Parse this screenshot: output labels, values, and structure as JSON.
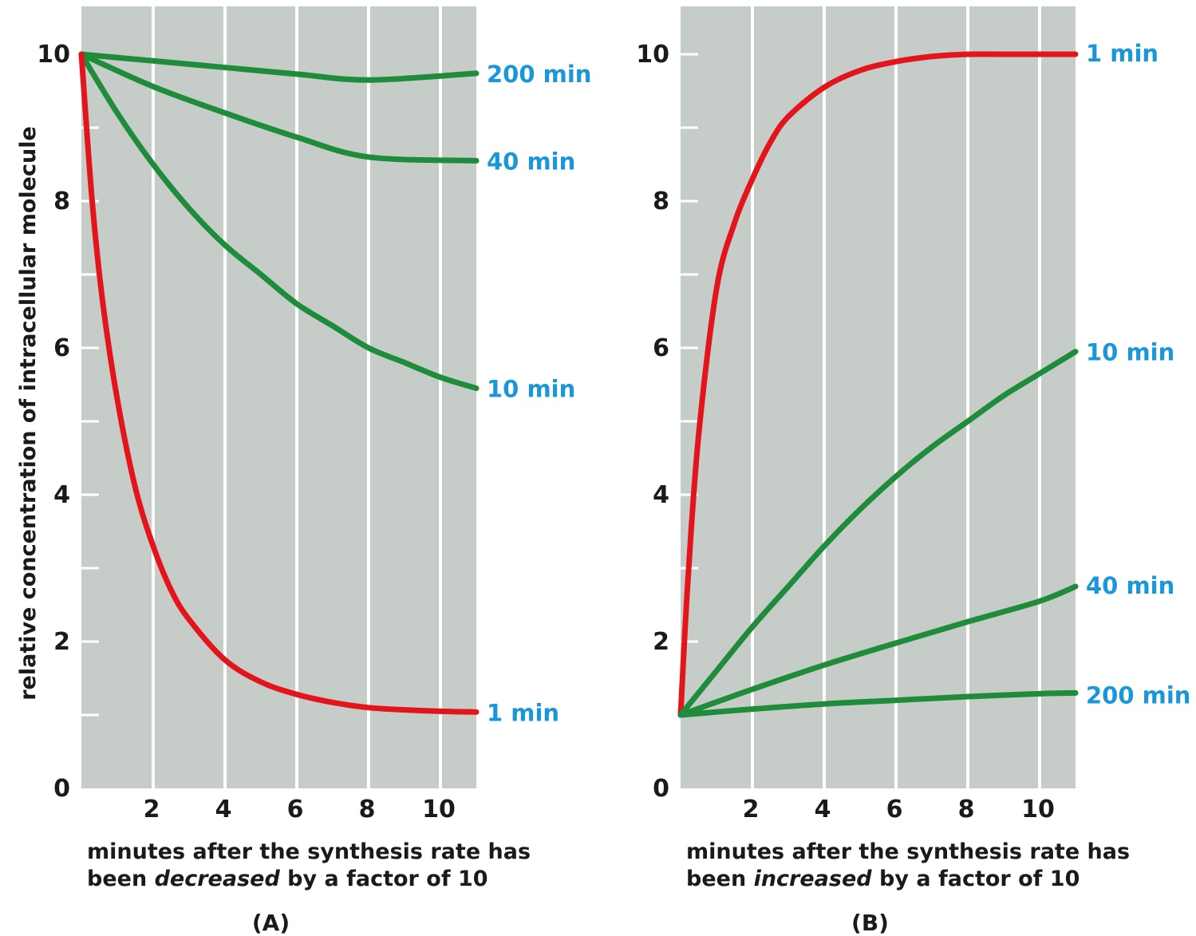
{
  "ylabel": "relative concentration of intracellular molecule",
  "colors": {
    "plot_bg": "#c6cdc8",
    "grid": "#ffffff",
    "fast": "#e3141b",
    "slow": "#1e8c3a",
    "series_label": "#1a97d8"
  },
  "chart_data": [
    {
      "type": "line",
      "panel_label": "(A)",
      "xlabel_line1": "minutes after the synthesis rate has",
      "xlabel_line2_pre": "been ",
      "xlabel_line2_em": "decreased",
      "xlabel_line2_post": " by a factor of 10",
      "ylabel": "relative concentration of intracellular molecule",
      "xlim": [
        0,
        11
      ],
      "ylim": [
        0,
        10
      ],
      "x_ticks": [
        2,
        4,
        6,
        8,
        10
      ],
      "x_tick_labels": [
        "2",
        "4",
        "6",
        "8",
        "10"
      ],
      "y_ticks": [
        0,
        2,
        4,
        6,
        8,
        10
      ],
      "y_tick_labels": [
        "0",
        "2",
        "4",
        "6",
        "8",
        "10"
      ],
      "grid": true,
      "series": [
        {
          "name": "200 min",
          "color_key": "slow",
          "x": [
            0,
            2,
            4,
            6,
            8,
            11
          ],
          "y": [
            10,
            9.91,
            9.82,
            9.73,
            9.65,
            9.74
          ]
        },
        {
          "name": "40 min",
          "color_key": "slow",
          "x": [
            0,
            2,
            4,
            6,
            8,
            11
          ],
          "y": [
            10,
            9.56,
            9.2,
            8.87,
            8.6,
            8.55
          ]
        },
        {
          "name": "10 min",
          "color_key": "slow",
          "x": [
            0,
            1,
            2,
            3,
            4,
            5,
            6,
            7,
            8,
            9,
            10,
            11
          ],
          "y": [
            10,
            9.2,
            8.5,
            7.9,
            7.4,
            7.0,
            6.6,
            6.3,
            6.0,
            5.8,
            5.6,
            5.45
          ]
        },
        {
          "name": "1 min",
          "color_key": "fast",
          "x": [
            0,
            0.3,
            0.6,
            1,
            1.5,
            2,
            2.5,
            3,
            4,
            5,
            6,
            7,
            8,
            9,
            10,
            11
          ],
          "y": [
            10,
            8.0,
            6.6,
            5.3,
            4.1,
            3.3,
            2.7,
            2.3,
            1.75,
            1.45,
            1.28,
            1.17,
            1.1,
            1.07,
            1.05,
            1.04
          ]
        }
      ]
    },
    {
      "type": "line",
      "panel_label": "(B)",
      "xlabel_line1": "minutes after the synthesis rate has",
      "xlabel_line2_pre": "been ",
      "xlabel_line2_em": "increased",
      "xlabel_line2_post": " by a factor of 10",
      "xlim": [
        0,
        11
      ],
      "ylim": [
        0,
        10
      ],
      "x_ticks": [
        2,
        4,
        6,
        8,
        10
      ],
      "x_tick_labels": [
        "2",
        "4",
        "6",
        "8",
        "10"
      ],
      "y_ticks": [
        0,
        2,
        4,
        6,
        8,
        10
      ],
      "y_tick_labels": [
        "0",
        "2",
        "4",
        "6",
        "8",
        "10"
      ],
      "grid": true,
      "series": [
        {
          "name": "1 min",
          "color_key": "fast",
          "x": [
            0,
            0.2,
            0.5,
            1,
            1.5,
            2,
            2.5,
            3,
            4,
            5,
            6,
            7,
            8,
            9,
            10,
            11
          ],
          "y": [
            1,
            2.8,
            4.8,
            6.8,
            7.7,
            8.3,
            8.8,
            9.15,
            9.55,
            9.78,
            9.9,
            9.97,
            10.0,
            10.0,
            10.0,
            10.0
          ]
        },
        {
          "name": "10 min",
          "color_key": "slow",
          "x": [
            0,
            1,
            2,
            3,
            4,
            5,
            6,
            7,
            8,
            9,
            10,
            11
          ],
          "y": [
            1,
            1.6,
            2.2,
            2.75,
            3.3,
            3.8,
            4.25,
            4.65,
            5.0,
            5.35,
            5.65,
            5.95
          ]
        },
        {
          "name": "40 min",
          "color_key": "slow",
          "x": [
            0,
            2,
            4,
            6,
            8,
            10,
            11
          ],
          "y": [
            1,
            1.35,
            1.68,
            1.98,
            2.27,
            2.55,
            2.75
          ]
        },
        {
          "name": "200 min",
          "color_key": "slow",
          "x": [
            0,
            2,
            4,
            6,
            8,
            10,
            11
          ],
          "y": [
            1,
            1.08,
            1.15,
            1.2,
            1.25,
            1.29,
            1.3
          ]
        }
      ]
    }
  ]
}
